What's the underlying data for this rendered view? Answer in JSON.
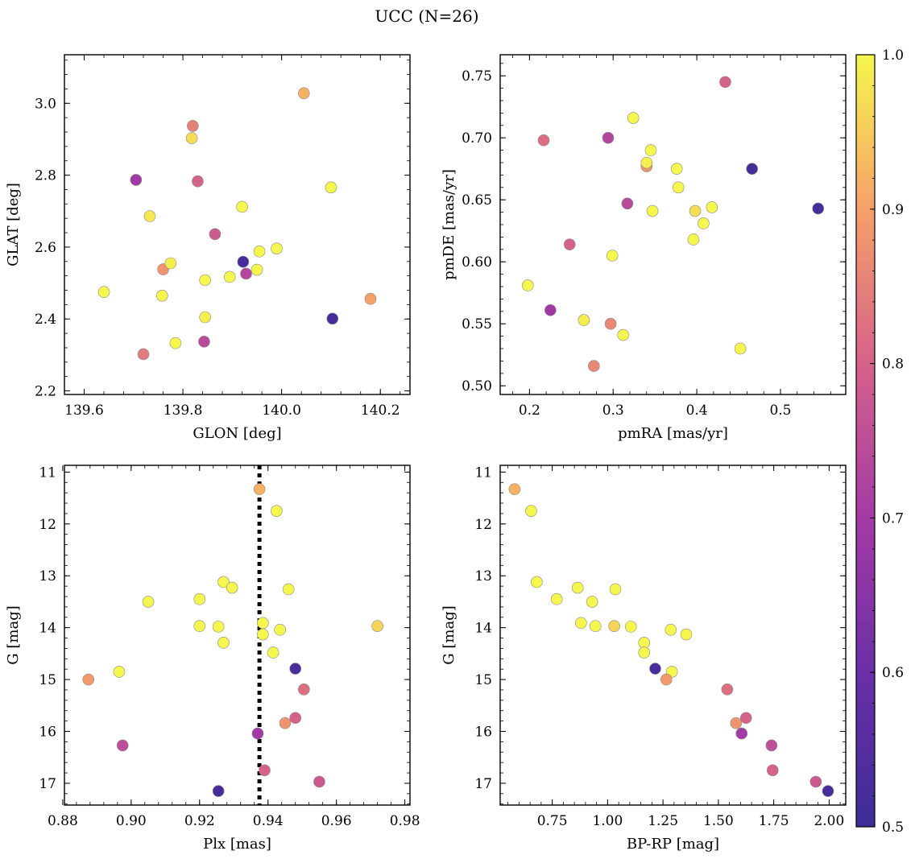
{
  "title": "UCC (N=26)",
  "colorbar": {
    "min": 0.5,
    "max": 1.0,
    "ticks": [
      "0.5",
      "0.6",
      "0.7",
      "0.8",
      "0.9",
      "1.0"
    ],
    "colormap": "plasma"
  },
  "chart_data": [
    {
      "type": "scatter",
      "title": "",
      "xlabel": "GLON [deg]",
      "ylabel": "GLAT [deg]",
      "xlim": [
        139.56,
        140.26
      ],
      "ylim": [
        2.19,
        3.135
      ],
      "y_inverted": false,
      "xticks": [
        "139.6",
        "139.8",
        "140.0",
        "140.2"
      ],
      "xtick_values": [
        139.6,
        139.8,
        140.0,
        140.2
      ],
      "yticks": [
        "2.2",
        "2.4",
        "2.6",
        "2.8",
        "3.0"
      ],
      "ytick_values": [
        2.2,
        2.4,
        2.6,
        2.8,
        3.0
      ],
      "points": [
        {
          "x": 139.64,
          "y": 2.475,
          "c": 1.0
        },
        {
          "x": 139.705,
          "y": 2.787,
          "c": 0.69
        },
        {
          "x": 139.72,
          "y": 2.302,
          "c": 0.84
        },
        {
          "x": 139.733,
          "y": 2.686,
          "c": 0.98
        },
        {
          "x": 139.758,
          "y": 2.465,
          "c": 1.0
        },
        {
          "x": 139.76,
          "y": 2.538,
          "c": 0.88
        },
        {
          "x": 139.775,
          "y": 2.555,
          "c": 0.99
        },
        {
          "x": 139.785,
          "y": 2.333,
          "c": 1.0
        },
        {
          "x": 139.818,
          "y": 2.903,
          "c": 0.97
        },
        {
          "x": 139.82,
          "y": 2.937,
          "c": 0.85
        },
        {
          "x": 139.83,
          "y": 2.783,
          "c": 0.8
        },
        {
          "x": 139.843,
          "y": 2.337,
          "c": 0.74
        },
        {
          "x": 139.845,
          "y": 2.405,
          "c": 0.99
        },
        {
          "x": 139.845,
          "y": 2.508,
          "c": 1.0
        },
        {
          "x": 139.865,
          "y": 2.636,
          "c": 0.78
        },
        {
          "x": 139.895,
          "y": 2.517,
          "c": 1.0
        },
        {
          "x": 139.92,
          "y": 2.712,
          "c": 1.0
        },
        {
          "x": 139.922,
          "y": 2.559,
          "c": 0.52
        },
        {
          "x": 139.928,
          "y": 2.526,
          "c": 0.73
        },
        {
          "x": 139.95,
          "y": 2.537,
          "c": 1.0
        },
        {
          "x": 139.955,
          "y": 2.588,
          "c": 1.0
        },
        {
          "x": 139.99,
          "y": 2.596,
          "c": 1.0
        },
        {
          "x": 140.045,
          "y": 3.028,
          "c": 0.92
        },
        {
          "x": 140.1,
          "y": 2.766,
          "c": 1.0
        },
        {
          "x": 140.103,
          "y": 2.401,
          "c": 0.52
        },
        {
          "x": 140.18,
          "y": 2.456,
          "c": 0.9
        }
      ]
    },
    {
      "type": "scatter",
      "title": "",
      "xlabel": "pmRA [mas/yr]",
      "ylabel": "pmDE [mas/yr]",
      "xlim": [
        0.165,
        0.578
      ],
      "ylim": [
        0.493,
        0.767
      ],
      "y_inverted": false,
      "xticks": [
        "0.2",
        "0.3",
        "0.4",
        "0.5"
      ],
      "xtick_values": [
        0.2,
        0.3,
        0.4,
        0.5
      ],
      "yticks": [
        "0.50",
        "0.55",
        "0.60",
        "0.65",
        "0.70",
        "0.75"
      ],
      "ytick_values": [
        0.5,
        0.55,
        0.6,
        0.65,
        0.7,
        0.75
      ],
      "points": [
        {
          "x": 0.198,
          "y": 0.581,
          "c": 1.0
        },
        {
          "x": 0.217,
          "y": 0.698,
          "c": 0.82
        },
        {
          "x": 0.225,
          "y": 0.561,
          "c": 0.69
        },
        {
          "x": 0.248,
          "y": 0.614,
          "c": 0.8
        },
        {
          "x": 0.265,
          "y": 0.553,
          "c": 0.99
        },
        {
          "x": 0.277,
          "y": 0.516,
          "c": 0.86
        },
        {
          "x": 0.294,
          "y": 0.7,
          "c": 0.73
        },
        {
          "x": 0.297,
          "y": 0.55,
          "c": 0.86
        },
        {
          "x": 0.299,
          "y": 0.605,
          "c": 1.0
        },
        {
          "x": 0.312,
          "y": 0.541,
          "c": 1.0
        },
        {
          "x": 0.317,
          "y": 0.647,
          "c": 0.74
        },
        {
          "x": 0.324,
          "y": 0.716,
          "c": 1.0
        },
        {
          "x": 0.34,
          "y": 0.677,
          "c": 0.88
        },
        {
          "x": 0.34,
          "y": 0.68,
          "c": 0.99
        },
        {
          "x": 0.345,
          "y": 0.69,
          "c": 1.0
        },
        {
          "x": 0.347,
          "y": 0.641,
          "c": 1.0
        },
        {
          "x": 0.376,
          "y": 0.675,
          "c": 1.0
        },
        {
          "x": 0.378,
          "y": 0.66,
          "c": 1.0
        },
        {
          "x": 0.396,
          "y": 0.618,
          "c": 1.0
        },
        {
          "x": 0.398,
          "y": 0.641,
          "c": 0.97
        },
        {
          "x": 0.408,
          "y": 0.631,
          "c": 1.0
        },
        {
          "x": 0.418,
          "y": 0.644,
          "c": 1.0
        },
        {
          "x": 0.434,
          "y": 0.745,
          "c": 0.8
        },
        {
          "x": 0.452,
          "y": 0.53,
          "c": 1.0
        },
        {
          "x": 0.466,
          "y": 0.675,
          "c": 0.52
        },
        {
          "x": 0.545,
          "y": 0.643,
          "c": 0.52
        }
      ]
    },
    {
      "type": "scatter",
      "title": "",
      "xlabel": "Plx [mas]",
      "ylabel": "G [mag]",
      "xlim": [
        0.8805,
        0.9815
      ],
      "ylim": [
        17.42,
        10.87
      ],
      "y_inverted": true,
      "xticks": [
        "0.88",
        "0.90",
        "0.92",
        "0.94",
        "0.96",
        "0.98"
      ],
      "xtick_values": [
        0.88,
        0.9,
        0.92,
        0.94,
        0.96,
        0.98
      ],
      "yticks": [
        "11",
        "12",
        "13",
        "14",
        "15",
        "16",
        "17"
      ],
      "ytick_values": [
        11,
        12,
        13,
        14,
        15,
        16,
        17
      ],
      "vline": {
        "x": 0.9375,
        "style": "dotted"
      },
      "points": [
        {
          "x": 0.9375,
          "y": 11.33,
          "c": 0.92
        },
        {
          "x": 0.9425,
          "y": 11.75,
          "c": 1.0
        },
        {
          "x": 0.927,
          "y": 13.12,
          "c": 1.0
        },
        {
          "x": 0.9295,
          "y": 13.23,
          "c": 1.0
        },
        {
          "x": 0.946,
          "y": 13.26,
          "c": 1.0
        },
        {
          "x": 0.92,
          "y": 13.45,
          "c": 1.0
        },
        {
          "x": 0.905,
          "y": 13.5,
          "c": 1.0
        },
        {
          "x": 0.9385,
          "y": 13.91,
          "c": 1.0
        },
        {
          "x": 0.92,
          "y": 13.97,
          "c": 1.0
        },
        {
          "x": 0.9255,
          "y": 13.98,
          "c": 1.0
        },
        {
          "x": 0.972,
          "y": 13.97,
          "c": 0.96
        },
        {
          "x": 0.9435,
          "y": 14.04,
          "c": 1.0
        },
        {
          "x": 0.9385,
          "y": 14.13,
          "c": 1.0
        },
        {
          "x": 0.927,
          "y": 14.29,
          "c": 1.0
        },
        {
          "x": 0.9415,
          "y": 14.48,
          "c": 1.0
        },
        {
          "x": 0.948,
          "y": 14.79,
          "c": 0.52
        },
        {
          "x": 0.8965,
          "y": 14.85,
          "c": 1.0
        },
        {
          "x": 0.8875,
          "y": 15.0,
          "c": 0.89
        },
        {
          "x": 0.9505,
          "y": 15.19,
          "c": 0.82
        },
        {
          "x": 0.948,
          "y": 15.74,
          "c": 0.8
        },
        {
          "x": 0.945,
          "y": 15.84,
          "c": 0.88
        },
        {
          "x": 0.937,
          "y": 16.04,
          "c": 0.7
        },
        {
          "x": 0.8975,
          "y": 16.27,
          "c": 0.75
        },
        {
          "x": 0.939,
          "y": 16.75,
          "c": 0.8
        },
        {
          "x": 0.955,
          "y": 16.97,
          "c": 0.78
        },
        {
          "x": 0.9255,
          "y": 17.15,
          "c": 0.52
        }
      ]
    },
    {
      "type": "scatter",
      "title": "",
      "xlabel": "BP-RP [mag]",
      "ylabel": "G [mag]",
      "xlim": [
        0.515,
        2.075
      ],
      "ylim": [
        17.42,
        10.87
      ],
      "y_inverted": true,
      "xticks": [
        "0.75",
        "1.00",
        "1.25",
        "1.50",
        "1.75",
        "2.00"
      ],
      "xtick_values": [
        0.75,
        1.0,
        1.25,
        1.5,
        1.75,
        2.0
      ],
      "yticks": [
        "11",
        "12",
        "13",
        "14",
        "15",
        "16",
        "17"
      ],
      "ytick_values": [
        11,
        12,
        13,
        14,
        15,
        16,
        17
      ],
      "points": [
        {
          "x": 0.58,
          "y": 11.33,
          "c": 0.92
        },
        {
          "x": 0.655,
          "y": 11.75,
          "c": 1.0
        },
        {
          "x": 0.68,
          "y": 13.12,
          "c": 1.0
        },
        {
          "x": 0.77,
          "y": 13.45,
          "c": 1.0
        },
        {
          "x": 0.865,
          "y": 13.23,
          "c": 1.0
        },
        {
          "x": 0.93,
          "y": 13.5,
          "c": 1.0
        },
        {
          "x": 1.035,
          "y": 13.26,
          "c": 1.0
        },
        {
          "x": 0.88,
          "y": 13.91,
          "c": 1.0
        },
        {
          "x": 0.945,
          "y": 13.97,
          "c": 1.0
        },
        {
          "x": 1.03,
          "y": 13.97,
          "c": 0.96
        },
        {
          "x": 1.105,
          "y": 13.98,
          "c": 1.0
        },
        {
          "x": 1.165,
          "y": 14.29,
          "c": 1.0
        },
        {
          "x": 1.165,
          "y": 14.48,
          "c": 1.0
        },
        {
          "x": 1.285,
          "y": 14.04,
          "c": 1.0
        },
        {
          "x": 1.355,
          "y": 14.13,
          "c": 1.0
        },
        {
          "x": 1.215,
          "y": 14.79,
          "c": 0.52
        },
        {
          "x": 1.29,
          "y": 14.85,
          "c": 1.0
        },
        {
          "x": 1.265,
          "y": 15.0,
          "c": 0.89
        },
        {
          "x": 1.54,
          "y": 15.19,
          "c": 0.82
        },
        {
          "x": 1.58,
          "y": 15.84,
          "c": 0.88
        },
        {
          "x": 1.625,
          "y": 15.74,
          "c": 0.8
        },
        {
          "x": 1.605,
          "y": 16.04,
          "c": 0.7
        },
        {
          "x": 1.74,
          "y": 16.27,
          "c": 0.75
        },
        {
          "x": 1.745,
          "y": 16.75,
          "c": 0.8
        },
        {
          "x": 1.94,
          "y": 16.97,
          "c": 0.78
        },
        {
          "x": 1.995,
          "y": 17.15,
          "c": 0.52
        }
      ]
    }
  ]
}
